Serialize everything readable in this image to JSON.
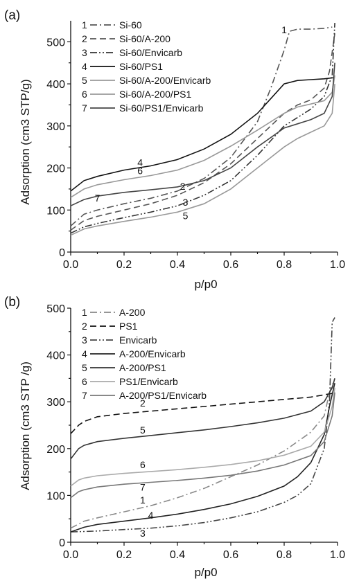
{
  "chart_data": [
    {
      "type": "line",
      "panel_label": "(a)",
      "xlabel": "p/p0",
      "ylabel": "Adsorption (cm3 STP/g)",
      "xlim": [
        0.0,
        1.0
      ],
      "ylim": [
        0,
        550
      ],
      "xticks": [
        "0.0",
        "0.2",
        "0.4",
        "0.6",
        "0.8",
        "1.0"
      ],
      "yticks": [
        "0",
        "100",
        "200",
        "300",
        "400",
        "500"
      ],
      "legend_position": "top-left",
      "series": [
        {
          "name": "Si-60",
          "legend_number": "1",
          "color": "#555555",
          "dash": "dashdot",
          "x": [
            0.0,
            0.05,
            0.1,
            0.2,
            0.3,
            0.4,
            0.5,
            0.6,
            0.7,
            0.75,
            0.8,
            0.82,
            0.85,
            0.9,
            0.95,
            0.98
          ],
          "y": [
            62,
            90,
            100,
            115,
            128,
            145,
            175,
            225,
            310,
            390,
            480,
            525,
            530,
            530,
            532,
            535
          ],
          "label_pos": [
            0.8,
            520
          ]
        },
        {
          "name": "Si-60/A-200",
          "legend_number": "2",
          "color": "#555555",
          "dash": "dashed",
          "x": [
            0.0,
            0.05,
            0.1,
            0.2,
            0.3,
            0.4,
            0.5,
            0.6,
            0.7,
            0.8,
            0.85,
            0.9,
            0.95,
            0.97,
            0.99
          ],
          "y": [
            52,
            75,
            85,
            100,
            115,
            135,
            165,
            210,
            270,
            330,
            350,
            362,
            390,
            430,
            520
          ],
          "label_pos": [
            0.42,
            148
          ]
        },
        {
          "name": "Si-60/Envicarb",
          "legend_number": "3",
          "color": "#333333",
          "dash": "dashdotdot",
          "x": [
            0.0,
            0.05,
            0.1,
            0.2,
            0.3,
            0.4,
            0.5,
            0.6,
            0.7,
            0.8,
            0.85,
            0.9,
            0.95,
            0.98,
            0.99
          ],
          "y": [
            45,
            60,
            68,
            82,
            95,
            110,
            135,
            170,
            230,
            300,
            320,
            340,
            370,
            420,
            545
          ],
          "label_pos": [
            0.43,
            110
          ]
        },
        {
          "name": "Si-60/PS1",
          "legend_number": "4",
          "color": "#111111",
          "dash": "solid",
          "x": [
            0.0,
            0.05,
            0.1,
            0.2,
            0.3,
            0.4,
            0.5,
            0.6,
            0.7,
            0.75,
            0.8,
            0.85,
            0.9,
            0.95,
            0.99
          ],
          "y": [
            145,
            170,
            180,
            195,
            205,
            220,
            245,
            280,
            330,
            365,
            400,
            408,
            410,
            412,
            415
          ],
          "label_pos": [
            0.26,
            205
          ]
        },
        {
          "name": "Si-60/A-200/Envicarb",
          "legend_number": "5",
          "color": "#999999",
          "dash": "solid",
          "x": [
            0.0,
            0.05,
            0.1,
            0.2,
            0.3,
            0.4,
            0.5,
            0.6,
            0.7,
            0.8,
            0.85,
            0.9,
            0.95,
            0.98,
            0.99
          ],
          "y": [
            40,
            55,
            62,
            73,
            83,
            95,
            115,
            150,
            200,
            250,
            270,
            285,
            300,
            330,
            400
          ],
          "label_pos": [
            0.43,
            78
          ]
        },
        {
          "name": "Si-60/A-200/PS1",
          "legend_number": "6",
          "color": "#999999",
          "dash": "solid",
          "x": [
            0.0,
            0.05,
            0.1,
            0.2,
            0.3,
            0.4,
            0.5,
            0.6,
            0.7,
            0.8,
            0.85,
            0.9,
            0.95,
            0.98,
            0.99
          ],
          "y": [
            130,
            150,
            160,
            172,
            182,
            195,
            218,
            252,
            290,
            330,
            345,
            352,
            360,
            380,
            420
          ],
          "label_pos": [
            0.26,
            185
          ]
        },
        {
          "name": "Si-60/PS1/Envicarb",
          "legend_number": "7",
          "color": "#444444",
          "dash": "solid",
          "x": [
            0.0,
            0.05,
            0.1,
            0.2,
            0.3,
            0.4,
            0.5,
            0.6,
            0.7,
            0.8,
            0.85,
            0.9,
            0.95,
            0.98,
            0.99
          ],
          "y": [
            110,
            125,
            133,
            142,
            148,
            155,
            170,
            200,
            250,
            295,
            305,
            315,
            330,
            370,
            450
          ],
          "label_pos": [
            0.1,
            120
          ]
        }
      ]
    },
    {
      "type": "line",
      "panel_label": "(b)",
      "xlabel": "p/p0",
      "ylabel": "Adsorption (cm3 STP /g)",
      "xlim": [
        0.0,
        1.0
      ],
      "ylim": [
        0,
        500
      ],
      "xticks": [
        "0.0",
        "0.2",
        "0.4",
        "0.6",
        "0.8",
        "1.0"
      ],
      "yticks": [
        "0",
        "100",
        "200",
        "300",
        "400",
        "500"
      ],
      "legend_position": "top-left",
      "series": [
        {
          "name": "A-200",
          "legend_number": "1",
          "color": "#888888",
          "dash": "dashdot",
          "x": [
            0.0,
            0.05,
            0.1,
            0.2,
            0.3,
            0.4,
            0.5,
            0.6,
            0.7,
            0.8,
            0.85,
            0.9,
            0.95,
            0.97,
            0.99
          ],
          "y": [
            30,
            45,
            52,
            65,
            78,
            95,
            115,
            140,
            165,
            195,
            215,
            235,
            270,
            320,
            350
          ],
          "label_pos": [
            0.27,
            83
          ]
        },
        {
          "name": "PS1",
          "legend_number": "2",
          "color": "#111111",
          "dash": "dashed",
          "x": [
            0.0,
            0.03,
            0.05,
            0.1,
            0.2,
            0.3,
            0.4,
            0.5,
            0.6,
            0.7,
            0.8,
            0.9,
            0.95,
            0.98,
            0.99
          ],
          "y": [
            232,
            250,
            258,
            268,
            275,
            280,
            285,
            290,
            295,
            300,
            305,
            310,
            315,
            318,
            320
          ],
          "label_pos": [
            0.27,
            290
          ]
        },
        {
          "name": "Envicarb",
          "legend_number": "3",
          "color": "#444444",
          "dash": "dashdotdot",
          "x": [
            0.0,
            0.05,
            0.1,
            0.2,
            0.3,
            0.4,
            0.5,
            0.6,
            0.7,
            0.8,
            0.85,
            0.9,
            0.95,
            0.97,
            0.98,
            0.99
          ],
          "y": [
            22,
            23,
            24,
            27,
            30,
            35,
            42,
            52,
            65,
            85,
            100,
            125,
            200,
            300,
            470,
            480
          ],
          "label_pos": [
            0.27,
            12
          ]
        },
        {
          "name": "A-200/Envicarb",
          "legend_number": "4",
          "color": "#222222",
          "dash": "solid",
          "x": [
            0.0,
            0.05,
            0.1,
            0.2,
            0.3,
            0.4,
            0.5,
            0.6,
            0.7,
            0.8,
            0.85,
            0.9,
            0.95,
            0.97,
            0.99
          ],
          "y": [
            22,
            32,
            38,
            45,
            52,
            60,
            70,
            82,
            98,
            120,
            140,
            170,
            230,
            290,
            340
          ],
          "label_pos": [
            0.3,
            50
          ]
        },
        {
          "name": "A-200/PS1",
          "legend_number": "5",
          "color": "#333333",
          "dash": "solid",
          "x": [
            0.0,
            0.03,
            0.05,
            0.1,
            0.2,
            0.3,
            0.4,
            0.5,
            0.6,
            0.7,
            0.8,
            0.9,
            0.95,
            0.98,
            0.99
          ],
          "y": [
            178,
            200,
            207,
            215,
            222,
            228,
            234,
            240,
            247,
            255,
            265,
            280,
            300,
            330,
            350
          ],
          "label_pos": [
            0.27,
            232
          ]
        },
        {
          "name": "PS1/Envicarb",
          "legend_number": "6",
          "color": "#aaaaaa",
          "dash": "solid",
          "x": [
            0.0,
            0.03,
            0.05,
            0.1,
            0.2,
            0.3,
            0.4,
            0.5,
            0.6,
            0.7,
            0.8,
            0.9,
            0.95,
            0.98,
            0.99
          ],
          "y": [
            120,
            133,
            137,
            142,
            147,
            151,
            155,
            160,
            166,
            174,
            186,
            205,
            235,
            290,
            330
          ],
          "label_pos": [
            0.27,
            158
          ]
        },
        {
          "name": "A-200/PS1/Envicarb",
          "legend_number": "7",
          "color": "#777777",
          "dash": "solid",
          "x": [
            0.0,
            0.03,
            0.05,
            0.1,
            0.2,
            0.3,
            0.4,
            0.5,
            0.6,
            0.7,
            0.8,
            0.9,
            0.95,
            0.98,
            0.99
          ],
          "y": [
            95,
            108,
            112,
            118,
            124,
            128,
            132,
            137,
            143,
            152,
            165,
            185,
            215,
            270,
            320
          ],
          "label_pos": [
            0.27,
            110
          ]
        }
      ]
    }
  ]
}
